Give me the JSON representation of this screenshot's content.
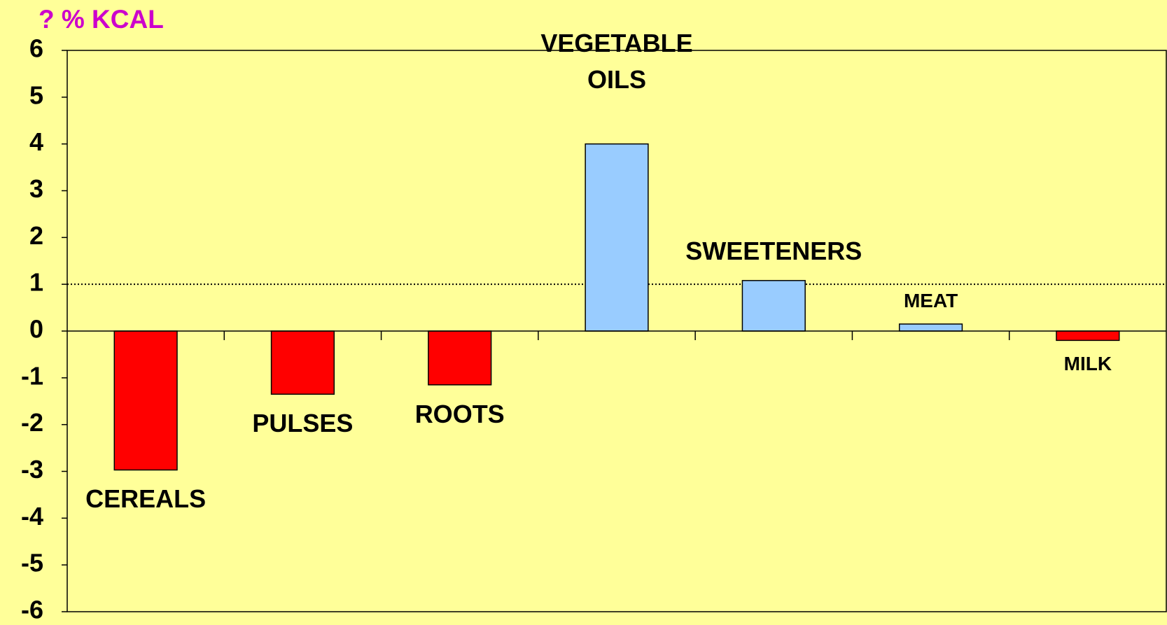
{
  "chart_data": {
    "type": "bar",
    "title": "? % KCAL",
    "categories": [
      "CEREALS",
      "PULSES",
      "ROOTS",
      "VEGETABLE OILS",
      "SWEETENERS",
      "MEAT",
      "MILK"
    ],
    "values": [
      -2.97,
      -1.35,
      -1.15,
      4.0,
      1.08,
      0.15,
      -0.2
    ],
    "colors": [
      "#ff0000",
      "#ff0000",
      "#ff0000",
      "#99ccff",
      "#99ccff",
      "#99ccff",
      "#ff0000"
    ],
    "ylim": [
      -6,
      6
    ],
    "yticks": [
      -6,
      -5,
      -4,
      -3,
      -2,
      -1,
      0,
      1,
      2,
      3,
      4,
      5,
      6
    ],
    "reference_line": 1
  }
}
